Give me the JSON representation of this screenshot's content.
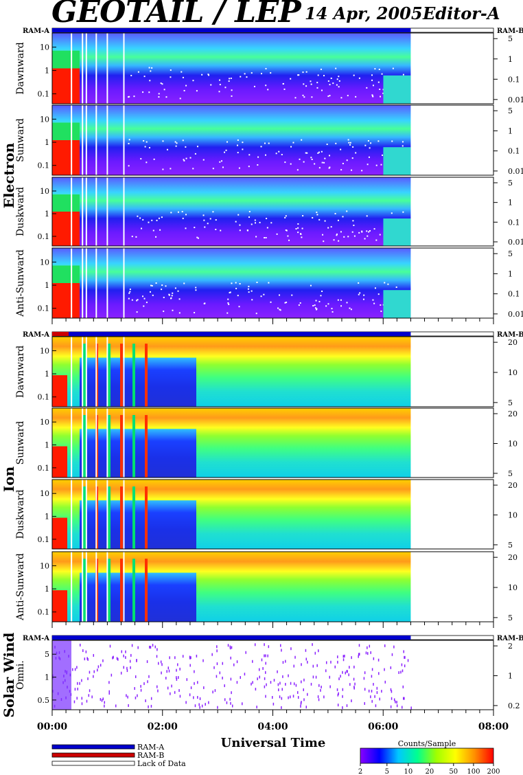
{
  "header": {
    "title": "GEOTAIL / LEP",
    "date": "14 Apr, 2005",
    "editor": "Editor-A"
  },
  "chart_data": {
    "type": "heatmap",
    "title": "GEOTAIL / LEP",
    "xlabel": "Universal Time",
    "x_ticks": [
      "00:00",
      "02:00",
      "04:00",
      "06:00",
      "08:00"
    ],
    "xlim_hours": [
      0,
      8
    ],
    "data_end_hours": 6.5,
    "ram_labels": {
      "left": "RAM-A",
      "right": "RAM-B"
    },
    "groups": [
      {
        "name": "Electron",
        "panels": [
          {
            "label": "Dawnward",
            "left_ticks": [
              "10",
              "1",
              "0.1"
            ],
            "right_ticks": [
              "5",
              "1",
              "0.1",
              "0.01"
            ]
          },
          {
            "label": "Sunward",
            "left_ticks": [
              "10",
              "1",
              "0.1"
            ],
            "right_ticks": [
              "5",
              "1",
              "0.1",
              "0.01"
            ]
          },
          {
            "label": "Duskward",
            "left_ticks": [
              "10",
              "1",
              "0.1"
            ],
            "right_ticks": [
              "5",
              "1",
              "0.1",
              "0.01"
            ]
          },
          {
            "label": "Anti-Sunward",
            "left_ticks": [
              "10",
              "1",
              "0.1"
            ],
            "right_ticks": [
              "5",
              "1",
              "0.1",
              "0.01"
            ]
          }
        ]
      },
      {
        "name": "Ion",
        "panels": [
          {
            "label": "Dawnward",
            "left_ticks": [
              "10",
              "1",
              "0.1"
            ],
            "right_ticks": [
              "20",
              "10",
              "5"
            ]
          },
          {
            "label": "Sunward",
            "left_ticks": [
              "10",
              "1",
              "0.1"
            ],
            "right_ticks": [
              "20",
              "10",
              "5"
            ]
          },
          {
            "label": "Duskward",
            "left_ticks": [
              "10",
              "1",
              "0.1"
            ],
            "right_ticks": [
              "20",
              "10",
              "5"
            ]
          },
          {
            "label": "Anti-Sunward",
            "left_ticks": [
              "10",
              "1",
              "0.1"
            ],
            "right_ticks": [
              "20",
              "10",
              "5"
            ]
          }
        ]
      },
      {
        "name": "Solar Wind",
        "panels": [
          {
            "label": "Omni.",
            "left_ticks": [
              "5",
              "1",
              "0.5"
            ],
            "right_ticks": [
              "2",
              "1",
              "0.2"
            ]
          }
        ]
      }
    ],
    "legend": [
      {
        "label": "RAM-A",
        "color": "#0000cc"
      },
      {
        "label": "RAM-B",
        "color": "#cc0000"
      },
      {
        "label": "Lack of Data",
        "color": "#ffffff"
      }
    ],
    "colorbar": {
      "title": "Counts/Sample",
      "ticks": [
        "2",
        "5",
        "10",
        "20",
        "50",
        "100",
        "200"
      ],
      "colors": [
        "#8a00ff",
        "#0000ff",
        "#00c8ff",
        "#00ff90",
        "#a0ff00",
        "#ffff00",
        "#ff9000",
        "#ff0000"
      ]
    }
  }
}
